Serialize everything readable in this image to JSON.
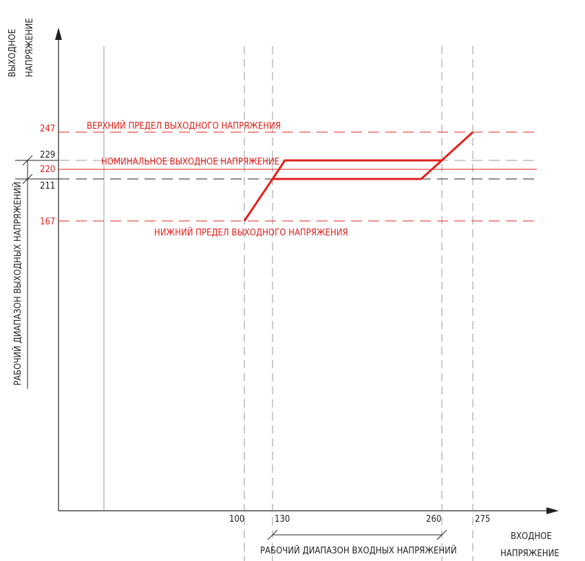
{
  "axes": {
    "y_title_line1": "ВЫХОДНОЕ",
    "y_title_line2": "НАПРЯЖЕНИЕ",
    "x_title_line1": "ВХОДНОЕ",
    "x_title_line2": "НАПРЯЖЕНИЕ"
  },
  "output_levels": {
    "upper_limit": "247",
    "nominal_upper": "229",
    "nominal": "220",
    "nominal_lower": "211",
    "lower_limit": "167"
  },
  "input_levels": {
    "v100": "100",
    "v130": "130",
    "v260": "260",
    "v275": "275"
  },
  "annotations": {
    "upper_limit_label": "ВЕРХНИЙ ПРЕДЕЛ ВЫХОДНОГО НАПРЯЖЕНИЯ",
    "nominal_label": "НОМИНАЛЬНОЕ ВЫХОДНОЕ НАПРЯЖЕНИЕ",
    "lower_limit_label": "НИЖНИЙ ПРЕДЕЛ ВЫХОДНОГО НАПРЯЖЕНИЯ",
    "output_range_label": "РАБОЧИЙ ДИАПАЗОН ВЫХОДНЫХ НАПРЯЖЕНИЙ",
    "input_range_label": "РАБОЧИЙ ДИАПАЗОН ВХОДНЫХ НАПРЯЖЕНИЙ"
  },
  "colors": {
    "limit": "#e0201b",
    "curve": "#e0201b",
    "axis": "#222222",
    "guide": "#9a9a9a"
  }
}
